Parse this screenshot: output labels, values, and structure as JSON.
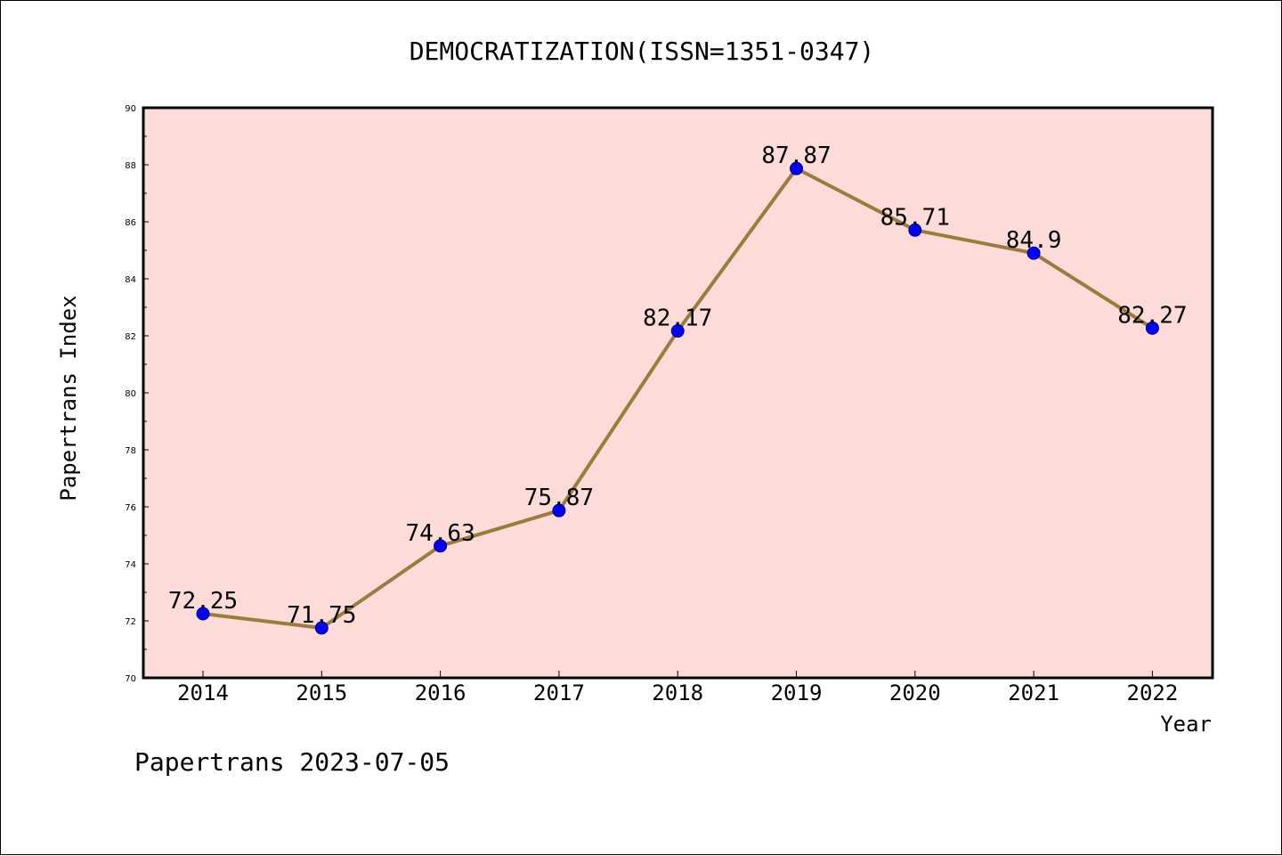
{
  "chart_data": {
    "type": "line",
    "title": "DEMOCRATIZATION(ISSN=1351-0347)",
    "xlabel": "Year",
    "ylabel": "Papertrans Index",
    "categories": [
      "2014",
      "2015",
      "2016",
      "2017",
      "2018",
      "2019",
      "2020",
      "2021",
      "2022"
    ],
    "series": [
      {
        "values": [
          72.25,
          71.75,
          74.63,
          75.87,
          82.17,
          87.87,
          85.71,
          84.9,
          82.27
        ],
        "labels": [
          "72.25",
          "71.75",
          "74.63",
          "75.87",
          "82.17",
          "87.87",
          "85.71",
          "84.9",
          "82.27"
        ]
      }
    ],
    "ylim": [
      70,
      90
    ],
    "yticks": [
      "70",
      "72",
      "74",
      "76",
      "78",
      "80",
      "82",
      "84",
      "86",
      "88",
      "90"
    ],
    "grid": false,
    "legend": "none"
  },
  "footer": "Papertrans 2023-07-05",
  "colors": {
    "plot_background": "#fddbd8",
    "line": "#9a7d3c",
    "marker": "#0000ff",
    "axis": "#000000"
  }
}
